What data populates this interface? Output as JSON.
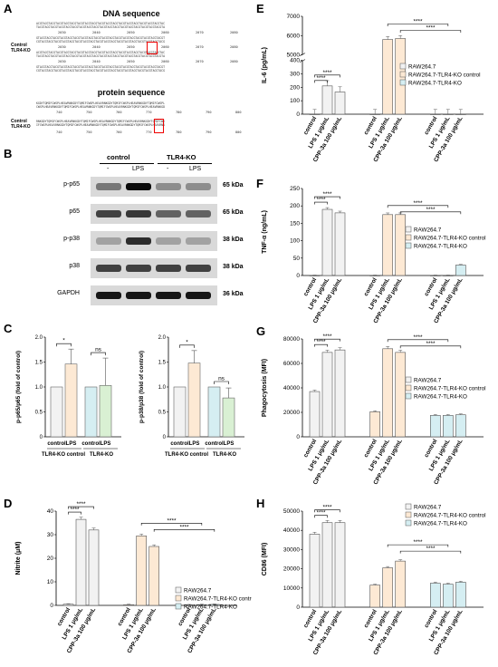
{
  "panels": {
    "A": "A",
    "B": "B",
    "C": "C",
    "D": "D",
    "E": "E",
    "F": "F",
    "G": "G",
    "H": "H"
  },
  "sequence": {
    "dna_title": "DNA sequence",
    "protein_title": "protein sequence",
    "sample_control": "Control",
    "sample_ko": "TLR4-KO",
    "dna_ticks": [
      "2030",
      "2040",
      "2050",
      "2060",
      "2070",
      "2080"
    ],
    "protein_ticks": [
      "740",
      "750",
      "760",
      "770",
      "780",
      "790",
      "800"
    ]
  },
  "western": {
    "group_control": "control",
    "group_ko": "TLR4-KO",
    "lanes": [
      "-",
      "LPS",
      "-",
      "LPS"
    ],
    "rows": [
      {
        "label": "p-p65",
        "kda": "65 kDa"
      },
      {
        "label": "p65",
        "kda": "65 kDa"
      },
      {
        "label": "p-p38",
        "kda": "38 kDa"
      },
      {
        "label": "p38",
        "kda": "38 kDa"
      },
      {
        "label": "GAPDH",
        "kda": "36 kDa"
      }
    ]
  },
  "colors": {
    "raw": "#f2f2f2",
    "ctrl": "#fde9d4",
    "ko": "#d5eef2",
    "gray": "#888888"
  },
  "chart_data": [
    {
      "panel": "C-left",
      "type": "bar",
      "ylabel": "p-p65/p65 (fold of control)",
      "ylim": [
        0,
        2
      ],
      "yticks": [
        0,
        0.5,
        1.0,
        1.5,
        2.0
      ],
      "categories": [
        "control",
        "LPS",
        "control",
        "LPS"
      ],
      "groups": [
        "TLR4-KO control",
        "TLR4-KO"
      ],
      "values": [
        1.0,
        1.46,
        1.0,
        1.03
      ],
      "errors": [
        0,
        0.3,
        0,
        0.55
      ],
      "significance": [
        {
          "pair": [
            0,
            1
          ],
          "label": "*"
        },
        {
          "pair": [
            2,
            3
          ],
          "label": "ns"
        }
      ]
    },
    {
      "panel": "C-right",
      "type": "bar",
      "ylabel": "p-p38/p38 (fold of control)",
      "ylim": [
        0,
        2
      ],
      "yticks": [
        0,
        0.5,
        1.0,
        1.5,
        2.0
      ],
      "categories": [
        "control",
        "LPS",
        "control",
        "LPS"
      ],
      "groups": [
        "TLR4-KO control",
        "TLR4-KO"
      ],
      "values": [
        1.0,
        1.48,
        1.0,
        0.78
      ],
      "errors": [
        0,
        0.25,
        0,
        0.2
      ],
      "significance": [
        {
          "pair": [
            0,
            1
          ],
          "label": "*"
        },
        {
          "pair": [
            2,
            3
          ],
          "label": "ns"
        }
      ]
    },
    {
      "panel": "D",
      "type": "bar",
      "ylabel": "Nitrite (μM)",
      "ylim": [
        0,
        40
      ],
      "yticks": [
        0,
        10,
        20,
        30,
        40
      ],
      "categories": [
        "control",
        "LPS 1 μg/mL",
        "CPP-3a 100 μg/mL"
      ],
      "series": [
        {
          "name": "RAW264.7",
          "values": [
            0.5,
            36.5,
            32
          ]
        },
        {
          "name": "RAW264.7-TLR4-KO control",
          "values": [
            0.3,
            29.5,
            25
          ]
        },
        {
          "name": "RAW264.7-TLR4-KO",
          "values": [
            0.2,
            0.3,
            0.4
          ]
        }
      ],
      "sig": "****"
    },
    {
      "panel": "E",
      "type": "bar",
      "ylabel": "IL-6 (pg/mL)",
      "ylim": [
        0,
        7000
      ],
      "break": [
        400,
        5000
      ],
      "yticks": [
        0,
        100,
        200,
        300,
        400,
        5000,
        6000,
        7000
      ],
      "categories": [
        "control",
        "LPS 1 μg/mL",
        "CPP-3a 100 μg/mL"
      ],
      "series": [
        {
          "name": "RAW264.7",
          "values": [
            0,
            210,
            165
          ]
        },
        {
          "name": "RAW264.7-TLR4-KO control",
          "values": [
            0,
            5800,
            5850
          ]
        },
        {
          "name": "RAW264.7-TLR4-KO",
          "values": [
            0,
            0,
            0
          ]
        }
      ],
      "sig": "****"
    },
    {
      "panel": "F",
      "type": "bar",
      "ylabel": "TNF-α (ng/mL)",
      "ylim": [
        0,
        250
      ],
      "yticks": [
        0,
        50,
        100,
        150,
        200,
        250
      ],
      "categories": [
        "control",
        "LPS 1 μg/mL",
        "CPP-3a 100 μg/mL"
      ],
      "series": [
        {
          "name": "RAW264.7",
          "values": [
            0,
            190,
            180
          ]
        },
        {
          "name": "RAW264.7-TLR4-KO control",
          "values": [
            0,
            175,
            175
          ]
        },
        {
          "name": "RAW264.7-TLR4-KO",
          "values": [
            0,
            0,
            30
          ]
        }
      ],
      "sig": "****"
    },
    {
      "panel": "G",
      "type": "bar",
      "ylabel": "Phagocytosis (MFI)",
      "ylim": [
        0,
        80000
      ],
      "yticks": [
        0,
        20000,
        40000,
        60000,
        80000
      ],
      "categories": [
        "control",
        "LPS 1 μg/mL",
        "CPP-3a 100 μg/mL"
      ],
      "series": [
        {
          "name": "RAW264.7",
          "values": [
            37000,
            69000,
            71000
          ]
        },
        {
          "name": "RAW264.7-TLR4-KO control",
          "values": [
            20500,
            72000,
            69000
          ]
        },
        {
          "name": "RAW264.7-TLR4-KO",
          "values": [
            17500,
            17500,
            18000
          ]
        }
      ],
      "sig": "****"
    },
    {
      "panel": "H",
      "type": "bar",
      "ylabel": "CD86 (MFI)",
      "ylim": [
        0,
        50000
      ],
      "yticks": [
        0,
        10000,
        20000,
        30000,
        40000,
        50000
      ],
      "categories": [
        "control",
        "LPS 1 μg/mL",
        "CPP-3a 100 μg/mL"
      ],
      "series": [
        {
          "name": "RAW264.7",
          "values": [
            38000,
            44000,
            44000
          ]
        },
        {
          "name": "RAW264.7-TLR4-KO control",
          "values": [
            11500,
            20500,
            24000
          ]
        },
        {
          "name": "RAW264.7-TLR4-KO",
          "values": [
            12500,
            12000,
            13000
          ]
        }
      ],
      "sig": "****"
    }
  ]
}
